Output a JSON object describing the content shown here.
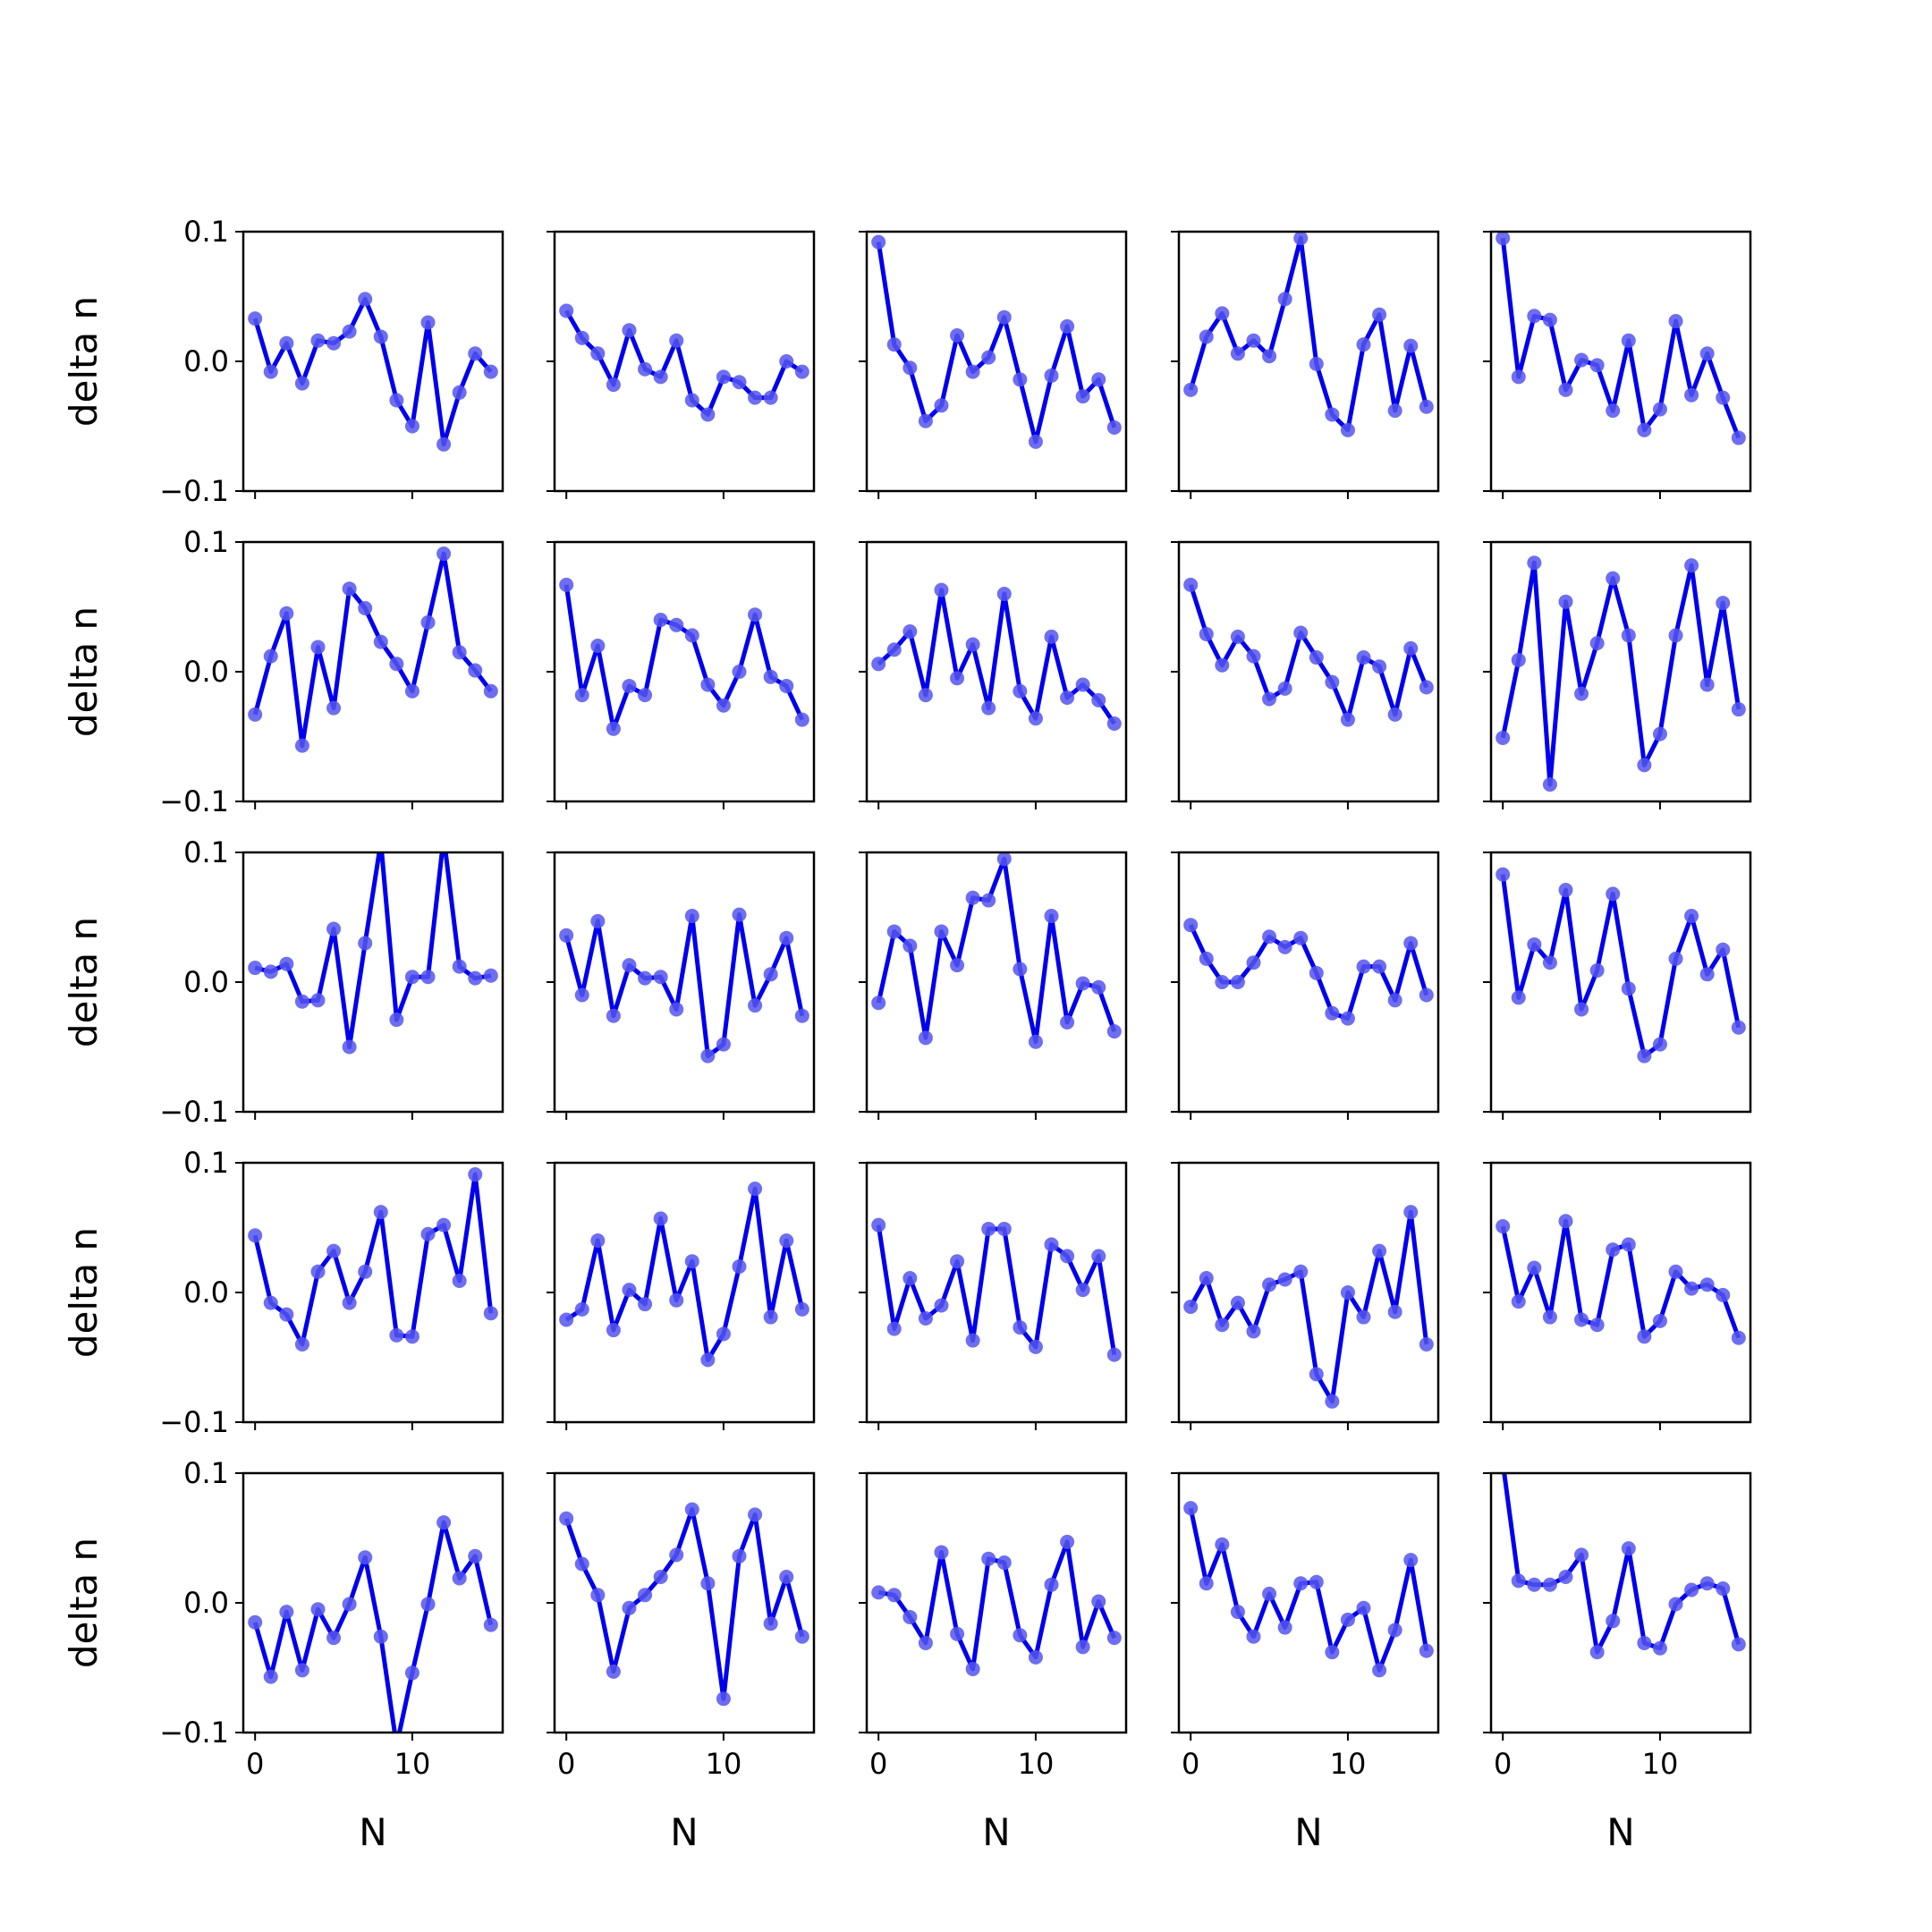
{
  "chart_data": {
    "type": "line",
    "layout": "grid",
    "rows": 5,
    "cols": 5,
    "xlabel": "N",
    "ylabel": "delta n",
    "xlim": [
      -0.75,
      15.75
    ],
    "ylim": [
      -0.1,
      0.1
    ],
    "xticks": [
      0,
      10
    ],
    "xtick_labels": [
      "0",
      "10"
    ],
    "yticks": [
      -0.1,
      0.0,
      0.1
    ],
    "ytick_labels": [
      "−0.1",
      "0.0",
      "0.1"
    ],
    "line_color": "#0000ee",
    "marker_color": "#5555ee",
    "x": [
      0,
      1,
      2,
      3,
      4,
      5,
      6,
      7,
      8,
      9,
      10,
      11,
      12,
      13,
      14,
      15
    ],
    "panels": [
      {
        "values": [
          0.033,
          -0.008,
          0.014,
          -0.017,
          0.016,
          0.014,
          0.023,
          0.048,
          0.019,
          -0.03,
          -0.05,
          0.03,
          -0.064,
          -0.024,
          0.006,
          -0.008
        ]
      },
      {
        "values": [
          0.039,
          0.018,
          0.006,
          -0.018,
          0.024,
          -0.006,
          -0.012,
          0.016,
          -0.03,
          -0.041,
          -0.012,
          -0.016,
          -0.028,
          -0.028,
          0.0,
          -0.008
        ]
      },
      {
        "values": [
          0.092,
          0.013,
          -0.005,
          -0.046,
          -0.034,
          0.02,
          -0.008,
          0.003,
          0.034,
          -0.014,
          -0.062,
          -0.011,
          0.027,
          -0.027,
          -0.014,
          -0.051
        ]
      },
      {
        "values": [
          -0.022,
          0.019,
          0.037,
          0.006,
          0.016,
          0.004,
          0.048,
          0.095,
          -0.002,
          -0.041,
          -0.053,
          0.013,
          0.036,
          -0.038,
          0.012,
          -0.035
        ]
      },
      {
        "values": [
          0.095,
          -0.012,
          0.035,
          0.032,
          -0.022,
          0.001,
          -0.003,
          -0.038,
          0.016,
          -0.053,
          -0.037,
          0.031,
          -0.026,
          0.006,
          -0.028,
          -0.059
        ]
      },
      {
        "values": [
          -0.033,
          0.012,
          0.045,
          -0.057,
          0.019,
          -0.028,
          0.064,
          0.049,
          0.023,
          0.006,
          -0.015,
          0.038,
          0.091,
          0.015,
          0.001,
          -0.015
        ]
      },
      {
        "values": [
          0.067,
          -0.018,
          0.02,
          -0.044,
          -0.011,
          -0.018,
          0.04,
          0.036,
          0.028,
          -0.01,
          -0.026,
          0.0,
          0.044,
          -0.004,
          -0.011,
          -0.037
        ]
      },
      {
        "values": [
          0.006,
          0.017,
          0.031,
          -0.018,
          0.063,
          -0.005,
          0.021,
          -0.028,
          0.06,
          -0.015,
          -0.036,
          0.027,
          -0.02,
          -0.01,
          -0.022,
          -0.04
        ]
      },
      {
        "values": [
          0.067,
          0.029,
          0.005,
          0.027,
          0.012,
          -0.021,
          -0.013,
          0.03,
          0.011,
          -0.008,
          -0.037,
          0.011,
          0.004,
          -0.033,
          0.018,
          -0.012
        ]
      },
      {
        "values": [
          -0.051,
          0.009,
          0.084,
          -0.087,
          0.054,
          -0.017,
          0.022,
          0.072,
          0.028,
          -0.072,
          -0.048,
          0.028,
          0.082,
          -0.01,
          0.053,
          -0.029
        ]
      },
      {
        "values": [
          0.011,
          0.008,
          0.014,
          -0.015,
          -0.014,
          0.041,
          -0.05,
          0.03,
          0.108,
          -0.029,
          0.004,
          0.004,
          0.112,
          0.012,
          0.003,
          0.005
        ]
      },
      {
        "values": [
          0.036,
          -0.01,
          0.047,
          -0.026,
          0.013,
          0.003,
          0.004,
          -0.021,
          0.051,
          -0.057,
          -0.048,
          0.052,
          -0.018,
          0.006,
          0.034,
          -0.026
        ]
      },
      {
        "values": [
          -0.016,
          0.039,
          0.028,
          -0.043,
          0.039,
          0.013,
          0.065,
          0.063,
          0.095,
          0.01,
          -0.046,
          0.051,
          -0.031,
          -0.001,
          -0.004,
          -0.038
        ]
      },
      {
        "values": [
          0.044,
          0.018,
          0.0,
          0.0,
          0.015,
          0.035,
          0.027,
          0.034,
          0.007,
          -0.024,
          -0.028,
          0.012,
          0.012,
          -0.014,
          0.03,
          -0.01
        ]
      },
      {
        "values": [
          0.083,
          -0.012,
          0.029,
          0.015,
          0.071,
          -0.021,
          0.009,
          0.068,
          -0.005,
          -0.057,
          -0.048,
          0.018,
          0.051,
          0.006,
          0.025,
          -0.035
        ]
      },
      {
        "values": [
          0.044,
          -0.008,
          -0.017,
          -0.04,
          0.016,
          0.032,
          -0.008,
          0.016,
          0.062,
          -0.033,
          -0.034,
          0.045,
          0.052,
          0.009,
          0.091,
          -0.016
        ]
      },
      {
        "values": [
          -0.021,
          -0.013,
          0.04,
          -0.029,
          0.002,
          -0.009,
          0.057,
          -0.006,
          0.024,
          -0.052,
          -0.032,
          0.02,
          0.08,
          -0.019,
          0.04,
          -0.013
        ]
      },
      {
        "values": [
          0.052,
          -0.028,
          0.011,
          -0.02,
          -0.01,
          0.024,
          -0.037,
          0.049,
          0.049,
          -0.027,
          -0.042,
          0.037,
          0.028,
          0.002,
          0.028,
          -0.048
        ]
      },
      {
        "values": [
          -0.011,
          0.011,
          -0.025,
          -0.008,
          -0.03,
          0.006,
          0.01,
          0.016,
          -0.063,
          -0.084,
          0.0,
          -0.019,
          0.032,
          -0.015,
          0.062,
          -0.04
        ]
      },
      {
        "values": [
          0.051,
          -0.007,
          0.019,
          -0.019,
          0.055,
          -0.021,
          -0.025,
          0.033,
          0.037,
          -0.034,
          -0.022,
          0.016,
          0.003,
          0.006,
          -0.002,
          -0.035
        ]
      },
      {
        "values": [
          -0.015,
          -0.057,
          -0.007,
          -0.052,
          -0.005,
          -0.027,
          -0.001,
          0.035,
          -0.026,
          -0.11,
          -0.054,
          -0.001,
          0.062,
          0.019,
          0.036,
          -0.017
        ]
      },
      {
        "values": [
          0.065,
          0.03,
          0.006,
          -0.053,
          -0.004,
          0.006,
          0.02,
          0.037,
          0.072,
          0.015,
          -0.074,
          0.036,
          0.068,
          -0.016,
          0.02,
          -0.026
        ]
      },
      {
        "values": [
          0.008,
          0.006,
          -0.011,
          -0.031,
          0.039,
          -0.024,
          -0.051,
          0.034,
          0.031,
          -0.025,
          -0.042,
          0.014,
          0.047,
          -0.034,
          0.001,
          -0.027
        ]
      },
      {
        "values": [
          0.073,
          0.015,
          0.045,
          -0.007,
          -0.026,
          0.007,
          -0.019,
          0.015,
          0.016,
          -0.038,
          -0.013,
          -0.004,
          -0.052,
          -0.021,
          0.033,
          -0.037
        ]
      },
      {
        "values": [
          0.108,
          0.017,
          0.014,
          0.014,
          0.02,
          0.037,
          -0.038,
          -0.014,
          0.042,
          -0.031,
          -0.035,
          -0.001,
          0.01,
          0.015,
          0.011,
          -0.032
        ]
      }
    ]
  }
}
